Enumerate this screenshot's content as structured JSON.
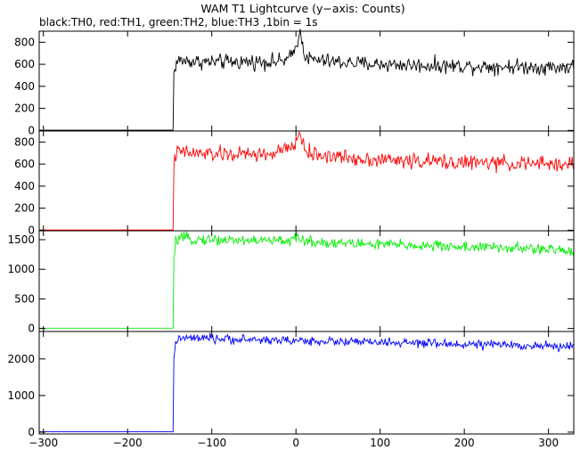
{
  "chart_data": {
    "type": "line",
    "title": "WAM T1 Lightcurve (y−axis: Counts)",
    "subtitle": "black:TH0, red:TH1, green:TH2, blue:TH3 ,1bin = 1s",
    "xlabel": "",
    "ylabel": "",
    "xlim": [
      -305,
      330
    ],
    "x_ticks": [
      -300,
      -200,
      -100,
      0,
      100,
      200,
      300
    ],
    "x_tick_labels": [
      "−300",
      "−200",
      "−100",
      "0",
      "100",
      "200",
      "300"
    ],
    "bin_seconds": 1,
    "grid": false,
    "legend": "none",
    "panels": [
      {
        "name": "TH0",
        "color": "#000000",
        "ylim": [
          -5,
          900
        ],
        "y_ticks": [
          0,
          200,
          400,
          600,
          800
        ],
        "y_tick_labels": [
          "0",
          "200",
          "400",
          "600",
          "800"
        ],
        "keypoints": {
          "x": [
            -305,
            -146,
            -145,
            -143,
            -140,
            -120,
            -100,
            -80,
            -60,
            -40,
            -20,
            -10,
            -5,
            0,
            3,
            6,
            10,
            15,
            20,
            40,
            60,
            80,
            100,
            150,
            200,
            250,
            300,
            330
          ],
          "y": [
            2,
            2,
            520,
            590,
            635,
            625,
            620,
            620,
            622,
            625,
            625,
            640,
            675,
            760,
            860,
            870,
            700,
            650,
            640,
            625,
            615,
            605,
            600,
            590,
            585,
            580,
            575,
            575
          ]
        }
      },
      {
        "name": "TH1",
        "color": "#ff0000",
        "ylim": [
          -5,
          900
        ],
        "y_ticks": [
          0,
          200,
          400,
          600,
          800
        ],
        "y_tick_labels": [
          "0",
          "200",
          "400",
          "600",
          "800"
        ],
        "keypoints": {
          "x": [
            -305,
            -146,
            -145,
            -143,
            -140,
            -120,
            -100,
            -80,
            -60,
            -40,
            -25,
            -15,
            -10,
            0,
            3,
            6,
            10,
            15,
            20,
            40,
            60,
            80,
            100,
            150,
            200,
            250,
            300,
            330
          ],
          "y": [
            2,
            2,
            600,
            680,
            710,
            695,
            690,
            688,
            688,
            688,
            692,
            735,
            720,
            790,
            860,
            870,
            740,
            700,
            690,
            672,
            658,
            648,
            640,
            625,
            615,
            605,
            600,
            595
          ]
        }
      },
      {
        "name": "TH2",
        "color": "#00ee00",
        "ylim": [
          -50,
          1650
        ],
        "y_ticks": [
          0,
          500,
          1000,
          1500
        ],
        "y_tick_labels": [
          "0",
          "500",
          "1000",
          "1500"
        ],
        "keypoints": {
          "x": [
            -305,
            -146,
            -145,
            -143,
            -140,
            -120,
            -100,
            -80,
            -60,
            -40,
            -20,
            0,
            5,
            10,
            20,
            40,
            60,
            80,
            100,
            150,
            200,
            250,
            300,
            330
          ],
          "y": [
            5,
            5,
            1150,
            1450,
            1520,
            1510,
            1500,
            1495,
            1490,
            1485,
            1480,
            1500,
            1530,
            1480,
            1465,
            1450,
            1440,
            1430,
            1420,
            1400,
            1380,
            1360,
            1330,
            1310
          ]
        }
      },
      {
        "name": "TH3",
        "color": "#0000ff",
        "ylim": [
          -50,
          2750
        ],
        "y_ticks": [
          0,
          1000,
          2000
        ],
        "y_tick_labels": [
          "0",
          "1000",
          "2000"
        ],
        "keypoints": {
          "x": [
            -305,
            -146,
            -145,
            -143,
            -140,
            -120,
            -100,
            -80,
            -60,
            -40,
            -20,
            0,
            20,
            40,
            60,
            80,
            100,
            150,
            200,
            250,
            300,
            330
          ],
          "y": [
            10,
            10,
            1900,
            2450,
            2560,
            2560,
            2550,
            2540,
            2530,
            2520,
            2510,
            2500,
            2490,
            2480,
            2470,
            2460,
            2450,
            2420,
            2400,
            2380,
            2350,
            2330
          ]
        }
      }
    ]
  }
}
